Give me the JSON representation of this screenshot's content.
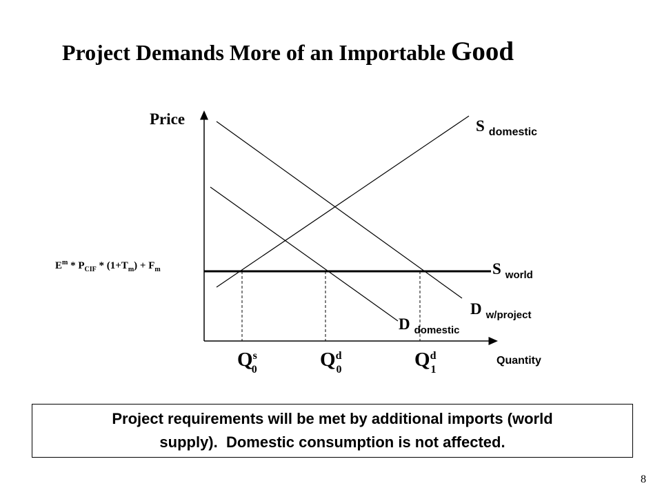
{
  "slide": {
    "title_main": "Project Demands More of an Importable",
    "title_last": "Good",
    "page_number": "8"
  },
  "diagram": {
    "y_axis_label": "Price",
    "x_axis_label": "Quantity",
    "price_label": {
      "E": "E",
      "m_sup": "m",
      "star1": " * P",
      "cif_sub": "CIF",
      "star2": " * (1+T",
      "m_sub": "m",
      "plus": ") + F",
      "m_sub2": "m"
    },
    "curves": {
      "s_domestic": {
        "main": "S",
        "sub": "domestic"
      },
      "s_world": {
        "main": "S",
        "sub": "world"
      },
      "d_project": {
        "main": "D",
        "sub": "w/project"
      },
      "d_domestic": {
        "main": "D",
        "sub": "domestic"
      }
    },
    "quantities": [
      {
        "main": "Q",
        "sup": "s",
        "sub": "0"
      },
      {
        "main": "Q",
        "sup": "d",
        "sub": "0"
      },
      {
        "main": "Q",
        "sup": "d",
        "sub": "1"
      }
    ]
  },
  "note": {
    "line1": "Project requirements will be met by additional imports (world",
    "line2": "supply).  Domestic consumption is not affected."
  }
}
